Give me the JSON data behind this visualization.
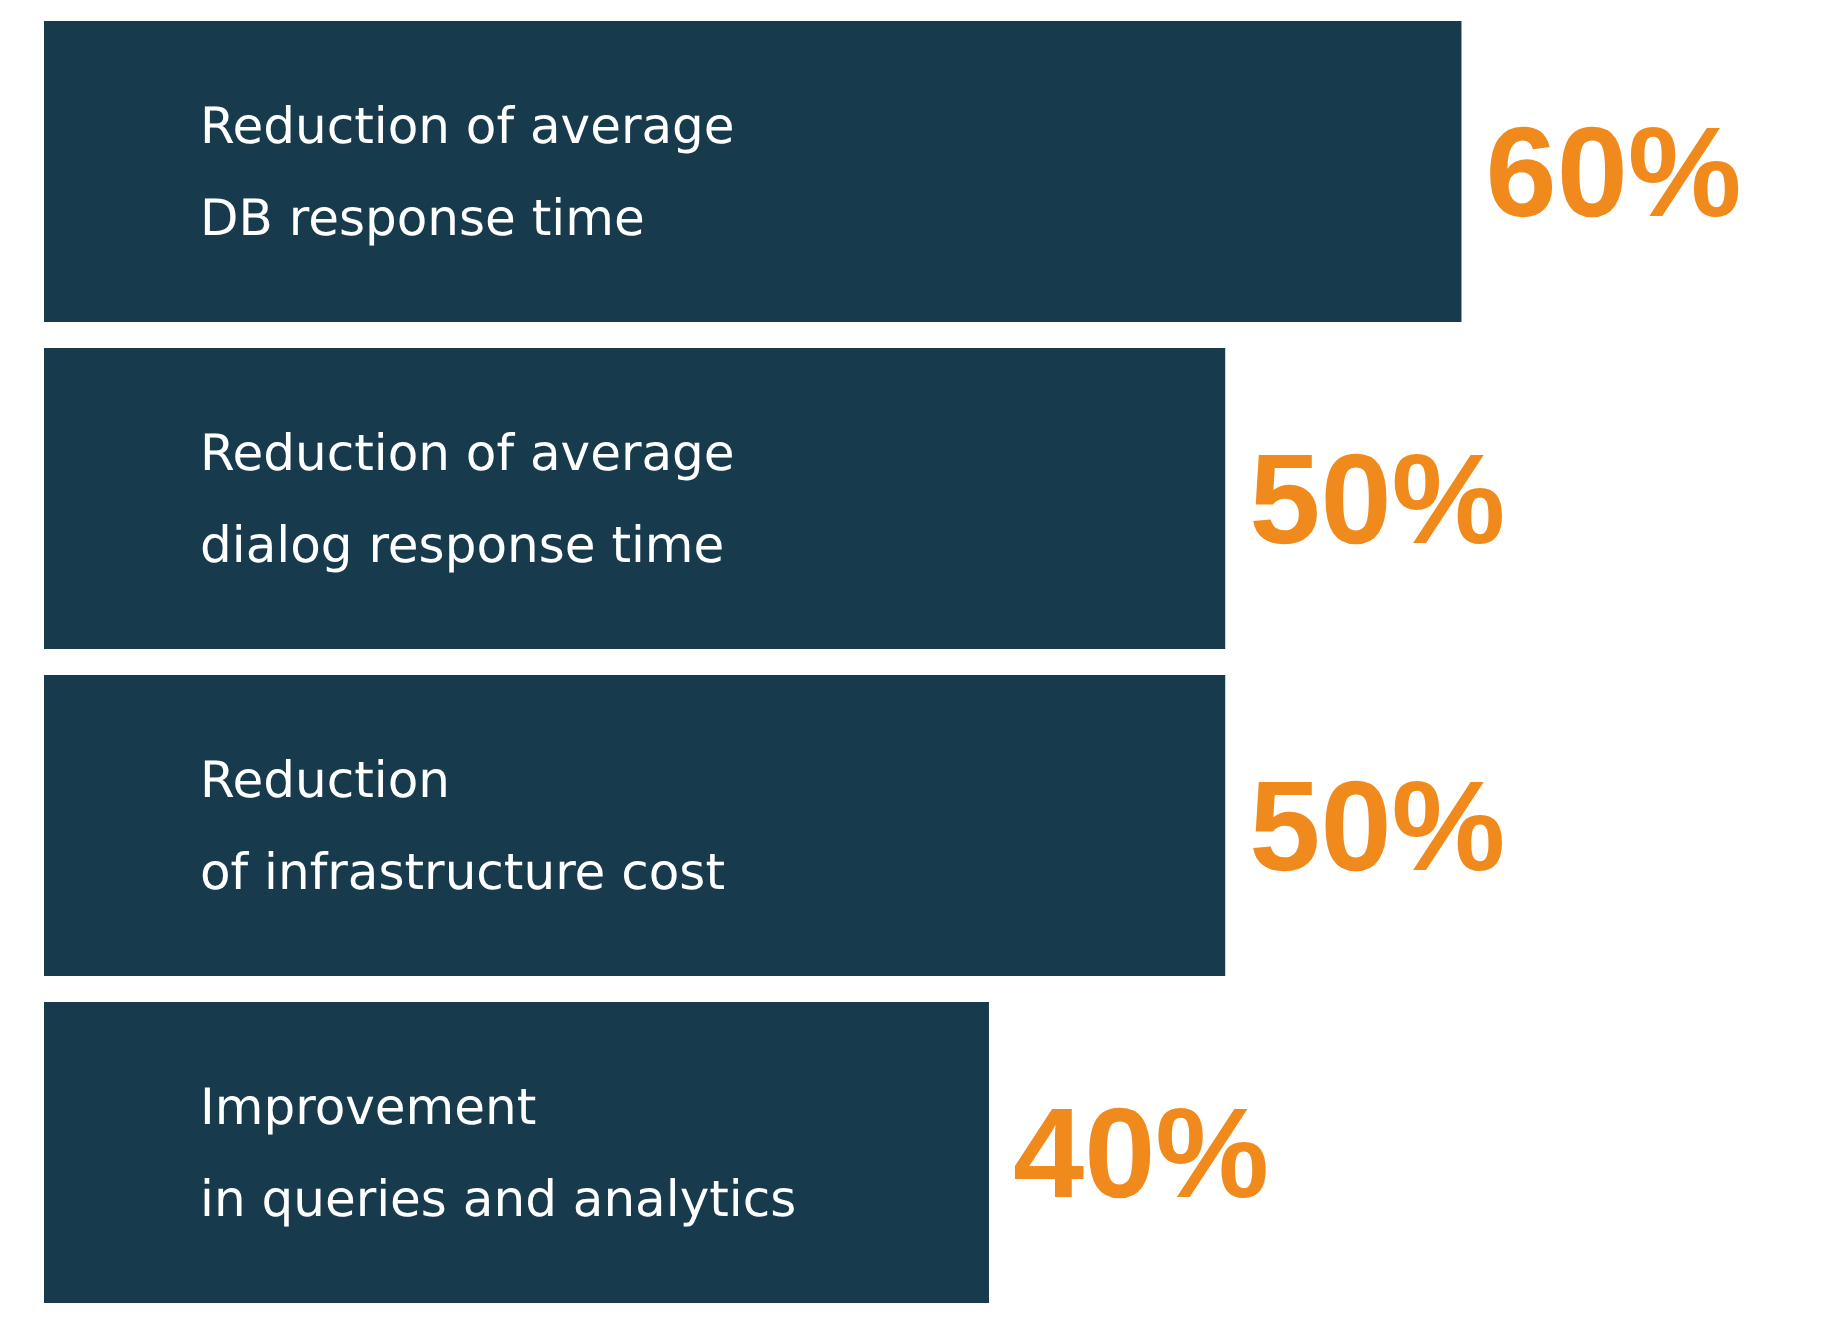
{
  "chart_data": {
    "type": "bar",
    "orientation": "horizontal",
    "categories": [
      "Reduction of average\nDB response time",
      "Reduction of average\ndialog response time",
      "Reduction\nof infrastructure cost",
      "Improvement\nin queries and analytics"
    ],
    "values": [
      60,
      50,
      50,
      40
    ],
    "value_labels": [
      "60%",
      "50%",
      "50%",
      "40%"
    ],
    "color": "#173a4c"
  }
}
